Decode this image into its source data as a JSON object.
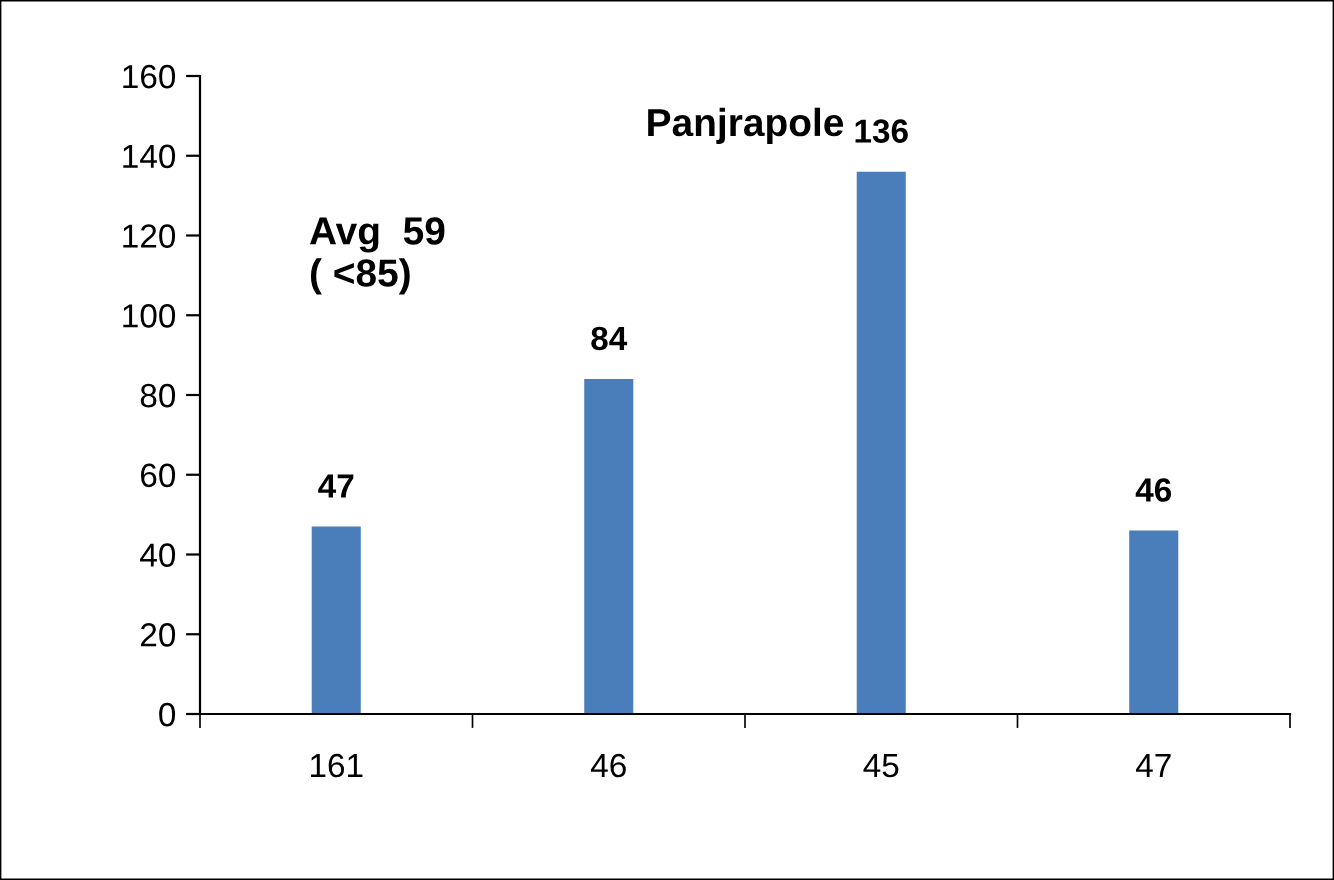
{
  "chart_data": {
    "type": "bar",
    "title": "Panjrapole",
    "categories": [
      "161",
      "46",
      "45",
      "47"
    ],
    "values": [
      47,
      84,
      136,
      46
    ],
    "color": "#4a7ebb",
    "ylim": [
      0,
      160
    ],
    "yticks": [
      0,
      20,
      40,
      60,
      80,
      100,
      120,
      140,
      160
    ],
    "data_labels": true,
    "grid": false,
    "legend": false,
    "annotations": [
      "Avg  59\n( <85)"
    ]
  }
}
